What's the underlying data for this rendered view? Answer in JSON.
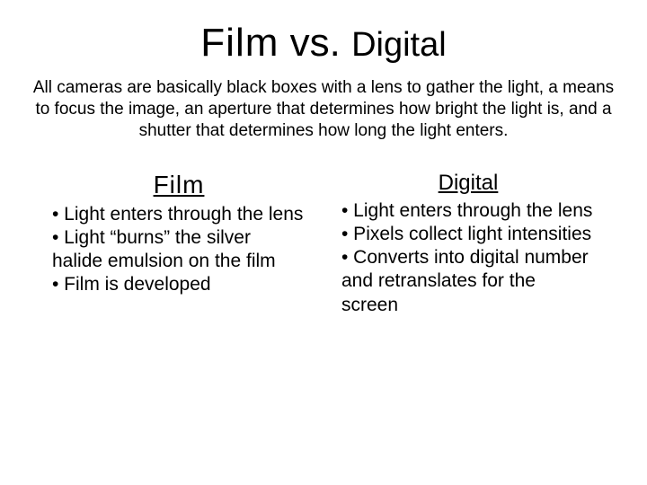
{
  "title": {
    "film": "Film",
    "vs": "vs.",
    "digital": "Digital"
  },
  "intro": "All cameras are basically black boxes with a lens to gather the light, a means to focus the image, an aperture that determines how bright the light is, and a shutter that determines how long the light enters.",
  "left": {
    "heading": "Film",
    "body": "• Light enters through the lens\n• Light “burns” the silver halide emulsion on the film\n• Film is developed"
  },
  "right": {
    "heading": "Digital",
    "body": "• Light enters through the lens\n• Pixels collect light intensities\n• Converts into digital number and retranslates for the screen"
  },
  "style": {
    "background_color": "#ffffff",
    "text_color": "#000000",
    "title_fontsize_pt": 33,
    "subtitle_digital_fontsize_pt": 28,
    "intro_fontsize_pt": 14,
    "col_heading_fontsize_pt": 21,
    "body_fontsize_pt": 16
  }
}
